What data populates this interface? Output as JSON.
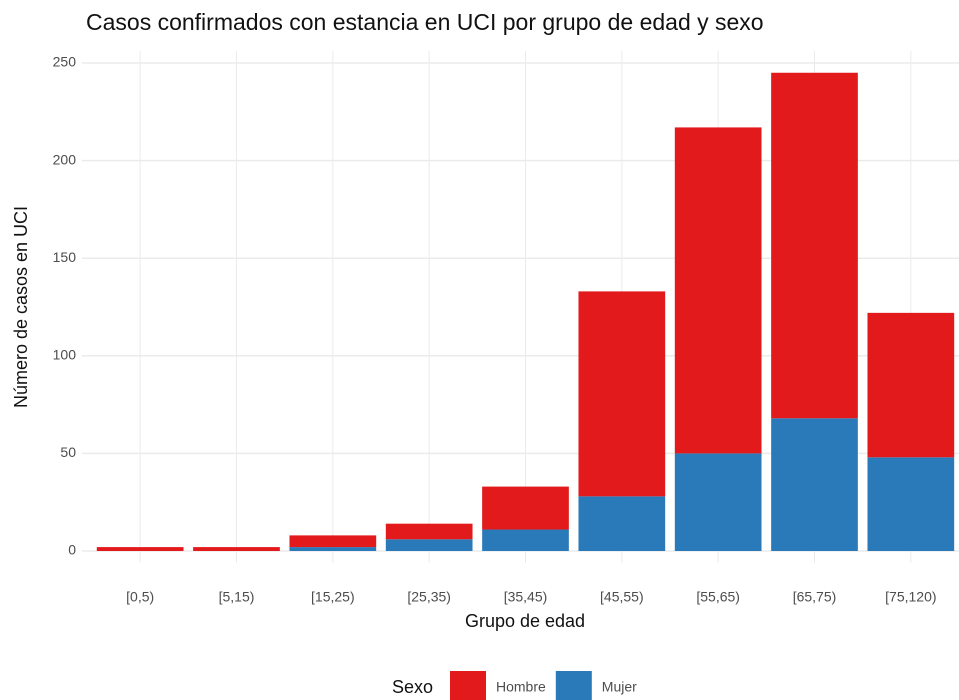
{
  "chart_data": {
    "type": "bar",
    "stacked": true,
    "title": "Casos confirmados con estancia en UCI por grupo de edad y sexo",
    "x_label": "Grupo de edad",
    "y_label": "Número de casos  en UCI",
    "legend_title": "Sexo",
    "categories": [
      "[0,5)",
      "[5,15)",
      "[15,25)",
      "[25,35)",
      "[35,45)",
      "[45,55)",
      "[55,65)",
      "[65,75)",
      "[75,120)"
    ],
    "series": [
      {
        "name": "Hombre",
        "color": "#e31a1c",
        "values": [
          2,
          2,
          6,
          8,
          22,
          105,
          167,
          177,
          74
        ]
      },
      {
        "name": "Mujer",
        "color": "#2a7ab9",
        "values": [
          0,
          0,
          2,
          6,
          11,
          28,
          50,
          68,
          48
        ]
      }
    ],
    "ylim": [
      0,
      250
    ],
    "yticks": [
      0,
      50,
      100,
      150,
      200,
      250
    ],
    "grid": true,
    "legend": "bottom"
  }
}
